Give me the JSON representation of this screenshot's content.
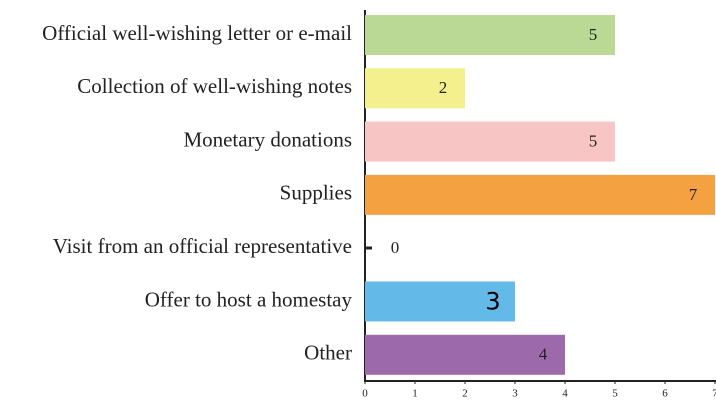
{
  "chart_data": {
    "type": "bar",
    "orientation": "horizontal",
    "categories": [
      "Official well-wishing letter or e-mail",
      "Collection of well-wishing notes",
      "Monetary donations",
      "Supplies",
      "Visit from an official representative",
      "Offer to host a homestay",
      "Other"
    ],
    "values": [
      5,
      2,
      5,
      7,
      0,
      3,
      4
    ],
    "colors": [
      "#bad994",
      "#f5f08e",
      "#f7c5c4",
      "#f4a141",
      "#222222",
      "#63b9e8",
      "#9c6aab"
    ],
    "xlim": [
      0,
      7
    ],
    "xticks": [
      0,
      1,
      2,
      3,
      4,
      5,
      6,
      7
    ],
    "grid": false
  }
}
